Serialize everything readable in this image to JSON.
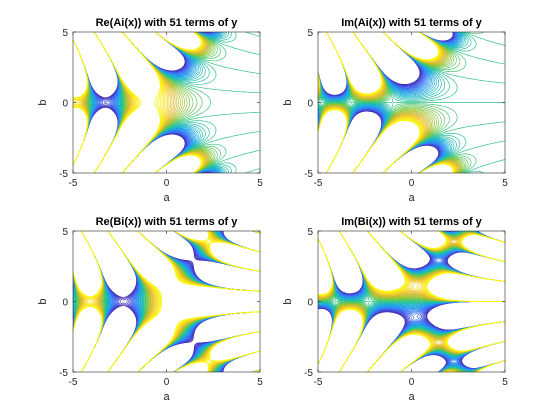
{
  "figure": {
    "background": "#ffffff",
    "colormap": [
      "#3e26a8",
      "#4358eb",
      "#2d8cf4",
      "#17b1d6",
      "#2ec487",
      "#8dc52f",
      "#e1b832",
      "#fadd20",
      "#f9fb0e"
    ]
  },
  "chart_data": [
    {
      "type": "contour",
      "title": "Re(Ai(x)) with 51 terms of y",
      "function": "Re(Ai(a+ib))",
      "xlabel": "a",
      "ylabel": "b",
      "xlim": [
        -5,
        5
      ],
      "ylim": [
        -5,
        5
      ],
      "xticks": [
        "-5",
        "0",
        "5"
      ],
      "yticks": [
        "5",
        "0",
        "-5"
      ],
      "levels": 51,
      "grid": false
    },
    {
      "type": "contour",
      "title": "Im(Ai(x)) with 51 terms of y",
      "function": "Im(Ai(a+ib))",
      "xlabel": "a",
      "ylabel": "b",
      "xlim": [
        -5,
        5
      ],
      "ylim": [
        -5,
        5
      ],
      "xticks": [
        "-5",
        "0",
        "5"
      ],
      "yticks": [
        "5",
        "0",
        "-5"
      ],
      "levels": 51,
      "grid": false
    },
    {
      "type": "contour",
      "title": "Re(Bi(x)) with 51 terms of y",
      "function": "Re(Bi(a+ib))",
      "xlabel": "a",
      "ylabel": "b",
      "xlim": [
        -5,
        5
      ],
      "ylim": [
        -5,
        5
      ],
      "xticks": [
        "-5",
        "0",
        "5"
      ],
      "yticks": [
        "5",
        "0",
        "-5"
      ],
      "levels": 51,
      "grid": false
    },
    {
      "type": "contour",
      "title": "Im(Bi(x)) with 51 terms of y",
      "function": "Im(Bi(a+ib))",
      "xlabel": "a",
      "ylabel": "b",
      "xlim": [
        -5,
        5
      ],
      "ylim": [
        -5,
        5
      ],
      "xticks": [
        "-5",
        "0",
        "5"
      ],
      "yticks": [
        "5",
        "0",
        "-5"
      ],
      "levels": 51,
      "grid": false
    }
  ]
}
